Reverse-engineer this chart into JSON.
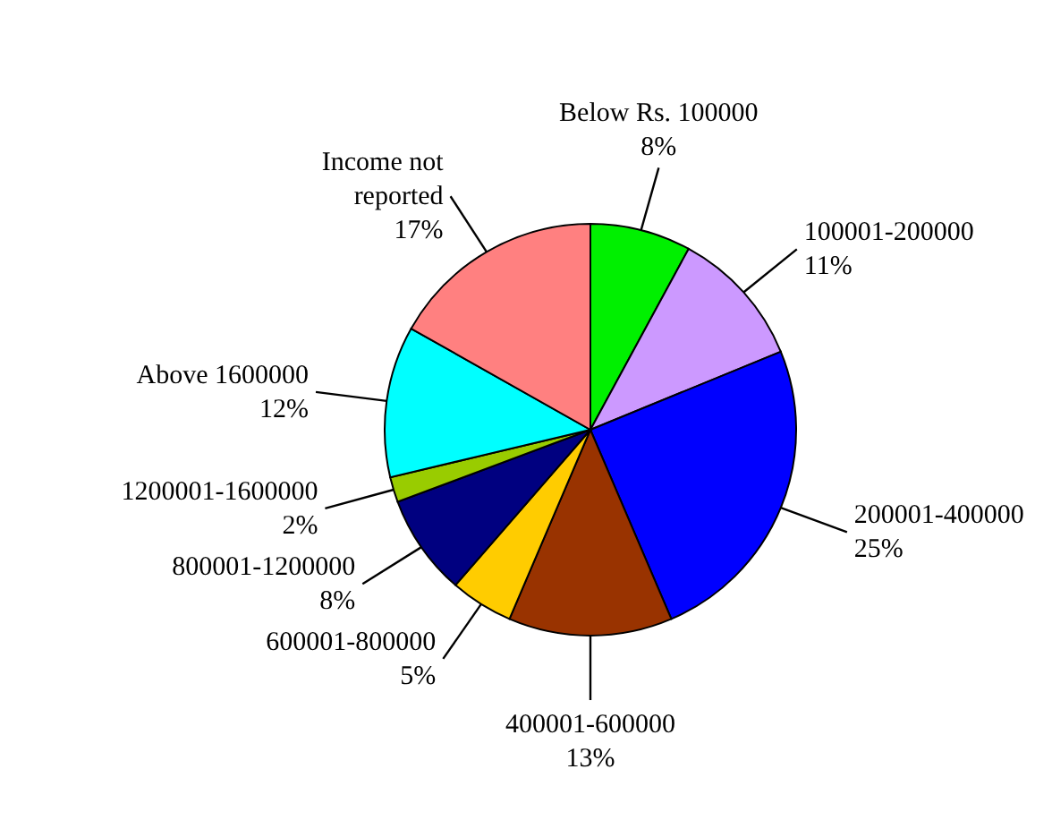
{
  "chart_data": {
    "type": "pie",
    "categories": [
      "Below Rs. 100000",
      "100001-200000",
      "200001-400000",
      "400001-600000",
      "600001-800000",
      "800001-1200000",
      "1200001-1600000",
      "Above 1600000",
      "Income not reported"
    ],
    "values": [
      8,
      11,
      25,
      13,
      5,
      8,
      2,
      12,
      17
    ],
    "colors": [
      "#00f000",
      "#cc99ff",
      "#0000ff",
      "#993300",
      "#ffcc00",
      "#000080",
      "#99cc00",
      "#00ffff",
      "#ff8080"
    ],
    "value_labels": [
      "8%",
      "11%",
      "25%",
      "13%",
      "5%",
      "8%",
      "2%",
      "12%",
      "17%"
    ]
  }
}
